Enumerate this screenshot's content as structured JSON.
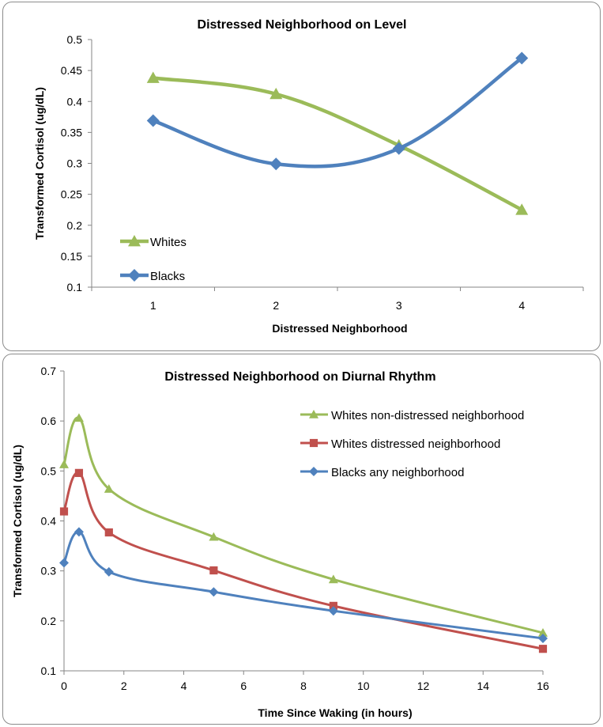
{
  "chart_data": [
    {
      "type": "line",
      "title": "Distressed Neighborhood on Level",
      "xlabel": "Distressed Neighborhood",
      "ylabel": "Transformed Cortisol (ug/dL)",
      "categories": [
        "1",
        "2",
        "3",
        "4"
      ],
      "ylim": [
        0.1,
        0.5
      ],
      "yticks": [
        "0.1",
        "0.15",
        "0.2",
        "0.25",
        "0.3",
        "0.35",
        "0.4",
        "0.45",
        "0.5"
      ],
      "grid": false,
      "legend": "bottom-left",
      "series": [
        {
          "name": "Whites",
          "values": [
            0.438,
            0.412,
            0.329,
            0.225
          ],
          "color": "#9bbb59",
          "marker": "triangle"
        },
        {
          "name": "Blacks",
          "values": [
            0.369,
            0.299,
            0.324,
            0.47
          ],
          "color": "#4f81bd",
          "marker": "diamond"
        }
      ]
    },
    {
      "type": "line",
      "title": "Distressed Neighborhood on Diurnal Rhythm",
      "xlabel": "Time Since Waking (in hours)",
      "ylabel": "Transformed Cortisol (ug/dL)",
      "xlim": [
        0,
        16
      ],
      "xticks": [
        "0",
        "2",
        "4",
        "6",
        "8",
        "10",
        "12",
        "14",
        "16"
      ],
      "ylim": [
        0.1,
        0.7
      ],
      "yticks": [
        "0.1",
        "0.2",
        "0.3",
        "0.4",
        "0.5",
        "0.6",
        "0.7"
      ],
      "grid": false,
      "legend": "top-right",
      "series": [
        {
          "name": "Whites non-distressed neighborhood",
          "x": [
            0,
            0.5,
            1.5,
            5,
            9,
            16
          ],
          "values": [
            0.513,
            0.606,
            0.464,
            0.368,
            0.283,
            0.176
          ],
          "color": "#9bbb59",
          "marker": "triangle"
        },
        {
          "name": "Whites distressed neighborhood",
          "x": [
            0,
            0.5,
            1.5,
            5,
            9,
            16
          ],
          "values": [
            0.419,
            0.496,
            0.377,
            0.301,
            0.23,
            0.144
          ],
          "color": "#c0504d",
          "marker": "square"
        },
        {
          "name": "Blacks any neighborhood",
          "x": [
            0,
            0.5,
            1.5,
            5,
            9,
            16
          ],
          "values": [
            0.316,
            0.378,
            0.298,
            0.258,
            0.22,
            0.165
          ],
          "color": "#4f81bd",
          "marker": "diamond"
        }
      ]
    }
  ]
}
